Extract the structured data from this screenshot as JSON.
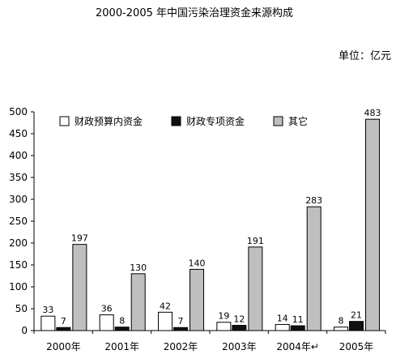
{
  "chart_data": {
    "type": "bar",
    "title": "2000-2005 年中国污染治理资金来源构成",
    "unit": "单位：亿元",
    "categories": [
      "2000年",
      "2001年",
      "2002年",
      "2003年",
      "2004年↵",
      "2005年"
    ],
    "series": [
      {
        "name": "财政预算内资金",
        "values": [
          33,
          36,
          42,
          19,
          14,
          8
        ],
        "color": "#ffffff"
      },
      {
        "name": "财政专项资金",
        "values": [
          7,
          8,
          7,
          12,
          11,
          21
        ],
        "color": "#111111"
      },
      {
        "name": "其它",
        "values": [
          197,
          130,
          140,
          191,
          283,
          483
        ],
        "color": "#bfbfbf"
      }
    ],
    "ylim": [
      0,
      500
    ],
    "yticks": [
      0,
      50,
      100,
      150,
      200,
      250,
      300,
      350,
      400,
      450,
      500
    ],
    "legend_position": "top-left",
    "grid": false
  }
}
